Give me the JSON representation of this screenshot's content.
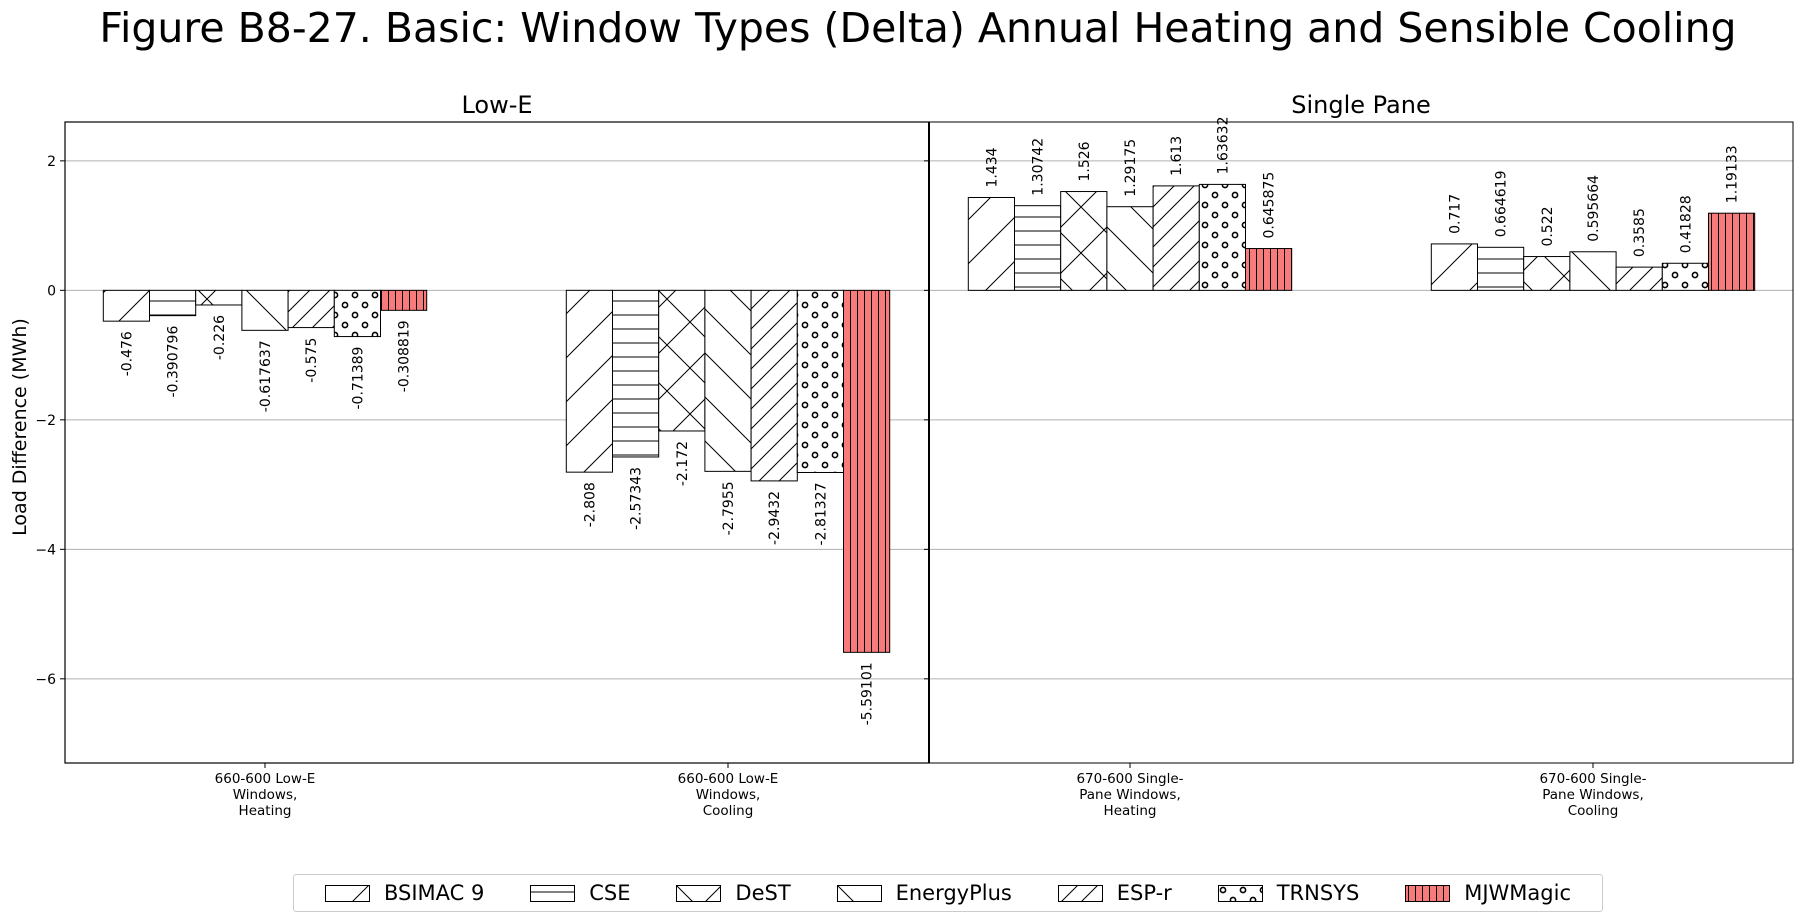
{
  "chart_data": {
    "type": "bar",
    "title": "Figure B8-27. Basic: Window Types (Delta) Annual Heating and Sensible Cooling",
    "ylabel": "Load Difference (MWh)",
    "ylim": [
      -7.3,
      2.6
    ],
    "yticks": [
      2,
      0,
      -2,
      -4,
      -6
    ],
    "ytick_labels": [
      "2",
      "0",
      "−2",
      "−4",
      "−6"
    ],
    "grid": true,
    "legend_position": "bottom-center",
    "panels": [
      {
        "title": "Low-E",
        "categories": [
          "660-600 Low-E Windows, Heating",
          "660-600 Low-E Windows, Cooling"
        ],
        "category_label_lines": [
          [
            "660-600 Low-E",
            "Windows,",
            "Heating"
          ],
          [
            "660-600 Low-E",
            "Windows,",
            "Cooling"
          ]
        ],
        "values": [
          [
            -0.476,
            -0.390796,
            -0.226,
            -0.617637,
            -0.575,
            -0.71389,
            -0.308819
          ],
          [
            -2.808,
            -2.57343,
            -2.172,
            -2.7955,
            -2.9432,
            -2.81327,
            -5.59101
          ]
        ],
        "labels": [
          [
            "-0.476",
            "-0.390796",
            "-0.226",
            "-0.617637",
            "-0.575",
            "-0.71389",
            "-0.308819"
          ],
          [
            "-2.808",
            "-2.57343",
            "-2.172",
            "-2.7955",
            "-2.9432",
            "-2.81327",
            "-5.59101"
          ]
        ]
      },
      {
        "title": "Single Pane",
        "categories": [
          "670-600 Single-Pane Windows, Heating",
          "670-600 Single-Pane Windows, Cooling"
        ],
        "category_label_lines": [
          [
            "670-600 Single-",
            "Pane Windows,",
            "Heating"
          ],
          [
            "670-600 Single-",
            "Pane Windows,",
            "Cooling"
          ]
        ],
        "values": [
          [
            1.434,
            1.30742,
            1.526,
            1.29175,
            1.613,
            1.63632,
            0.645875
          ],
          [
            0.717,
            0.664619,
            0.522,
            0.595664,
            0.3585,
            0.41828,
            1.19133
          ]
        ],
        "labels": [
          [
            "1.434",
            "1.30742",
            "1.526",
            "1.29175",
            "1.613",
            "1.63632",
            "0.645875"
          ],
          [
            "0.717",
            "0.664619",
            "0.522",
            "0.595664",
            "0.3585",
            "0.41828",
            "1.19133"
          ]
        ]
      }
    ],
    "series": [
      {
        "name": "BSIMAC 9",
        "hatch": "diagonal",
        "color": "#ffffff"
      },
      {
        "name": "CSE",
        "hatch": "horizontal",
        "color": "#ffffff"
      },
      {
        "name": "DeST",
        "hatch": "crosshatch",
        "color": "#ffffff"
      },
      {
        "name": "EnergyPlus",
        "hatch": "backdiagonal",
        "color": "#ffffff"
      },
      {
        "name": "ESP-r",
        "hatch": "dense-diagonal",
        "color": "#ffffff"
      },
      {
        "name": "TRNSYS",
        "hatch": "circles",
        "color": "#ffffff"
      },
      {
        "name": "MJWMagic",
        "hatch": "vertical",
        "color": "#f77b7b"
      }
    ]
  }
}
